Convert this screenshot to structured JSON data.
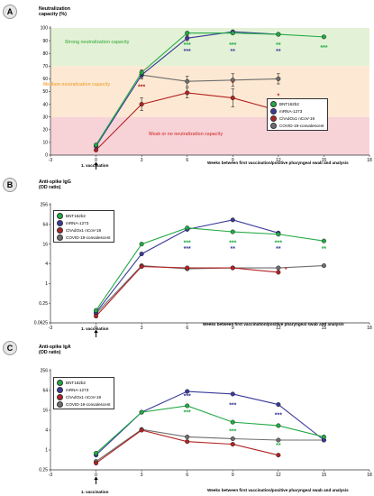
{
  "colors": {
    "BNT162b2": "#22aa44",
    "mRNA-1273": "#3a3a9a",
    "ChAdOx1 nCoV-19": "#b22222",
    "COVID-19-convalescent": "#6e6e6e",
    "strong_zone": "#e3f2d6",
    "medium_zone": "#fde9d3",
    "weak_zone": "#f7d3d8",
    "strong_text": "#5cb85c",
    "medium_text": "#f0ad4e",
    "weak_text": "#d9534f"
  },
  "panels": {
    "A": {
      "label": "A",
      "title": "Neutralization\ncapacity (%)",
      "xlabel": "Weeks between first vaccination/positive pharyngeal swab and analysis",
      "vaccination_label": "1. vaccination",
      "zones": {
        "strong": "Strong neutralization capacity",
        "medium": "Medium neutralization capacity",
        "weak": "Weak or no neutralization capacity"
      }
    },
    "B": {
      "label": "B",
      "title": "Anti-spike IgG\n(OD ratio)",
      "xlabel": "Weeks between first vaccination/positive pharyngeal swab and  analysis",
      "vaccination_label": "1. vaccination"
    },
    "C": {
      "label": "C",
      "title": "Anti-spike IgA\n(OD ratio)",
      "xlabel": "Weeks between first vaccination/positive pharyngeal swab and analysis",
      "vaccination_label": "1. vaccination"
    }
  },
  "legend": [
    "BNT162b2",
    "mRNA-1273",
    "ChAdOx1 nCoV-19",
    "COVID-19-convalescent"
  ],
  "chart_data": [
    {
      "type": "line",
      "panel": "A",
      "title": "Neutralization capacity (%)",
      "xlabel": "Weeks between first vaccination/positive pharyngeal swab and analysis",
      "ylabel": "Neutralization capacity (%)",
      "xlim": [
        -3,
        18
      ],
      "xticks": [
        -3,
        0,
        3,
        6,
        9,
        12,
        15,
        18
      ],
      "ylim": [
        0,
        100
      ],
      "yticks": [
        0,
        10,
        20,
        30,
        40,
        50,
        60,
        70,
        80,
        90,
        100
      ],
      "yscale": "linear",
      "bands": [
        {
          "from": 70,
          "to": 100,
          "zone": "strong"
        },
        {
          "from": 30,
          "to": 70,
          "zone": "medium"
        },
        {
          "from": 0,
          "to": 30,
          "zone": "weak"
        }
      ],
      "series": [
        {
          "name": "BNT162b2",
          "x": [
            0,
            3,
            6,
            9,
            12,
            15
          ],
          "y": [
            8,
            65,
            96,
            96,
            95,
            93
          ],
          "err": [
            1,
            2,
            1,
            1,
            1,
            1
          ]
        },
        {
          "name": "mRNA-1273",
          "x": [
            0,
            3,
            6,
            9,
            12
          ],
          "y": [
            7,
            63,
            92,
            97,
            95
          ],
          "err": [
            1,
            2,
            2,
            1,
            1
          ]
        },
        {
          "name": "ChAdOx1 nCoV-19",
          "x": [
            0,
            3,
            6,
            9,
            12
          ],
          "y": [
            4,
            40,
            49,
            45,
            35
          ],
          "err": [
            1,
            5,
            4,
            7,
            6
          ]
        },
        {
          "name": "COVID-19-convalescent",
          "x": [
            3,
            6,
            9,
            12
          ],
          "y": [
            63,
            58,
            59,
            60
          ],
          "err": [
            3,
            4,
            5,
            4
          ]
        }
      ],
      "annotations": [
        {
          "x": 6,
          "y": 85,
          "text": "***",
          "series": "BNT162b2"
        },
        {
          "x": 6,
          "y": 80,
          "text": "***",
          "series": "mRNA-1273"
        },
        {
          "x": 9,
          "y": 85,
          "text": "***",
          "series": "BNT162b2"
        },
        {
          "x": 9,
          "y": 80,
          "text": "**",
          "series": "mRNA-1273"
        },
        {
          "x": 12,
          "y": 85,
          "text": "**",
          "series": "BNT162b2"
        },
        {
          "x": 12,
          "y": 80,
          "text": "**",
          "series": "mRNA-1273"
        },
        {
          "x": 15,
          "y": 83,
          "text": "***",
          "series": "BNT162b2"
        },
        {
          "x": 3,
          "y": 52,
          "text": "***",
          "series": "ChAdOx1 nCoV-19"
        },
        {
          "x": 9,
          "y": 55,
          "text": "*",
          "series": "ChAdOx1 nCoV-19"
        },
        {
          "x": 12,
          "y": 45,
          "text": "*",
          "series": "ChAdOx1 nCoV-19"
        }
      ]
    },
    {
      "type": "line",
      "panel": "B",
      "title": "Anti-spike IgG (OD ratio)",
      "xlabel": "Weeks between first vaccination/positive pharyngeal swab and  analysis",
      "ylabel": "Anti-spike IgG (OD ratio)",
      "xlim": [
        -3,
        18
      ],
      "xticks": [
        -3,
        0,
        3,
        6,
        9,
        12,
        15,
        18
      ],
      "ylim": [
        0.0625,
        256
      ],
      "yticks": [
        0.0625,
        0.25,
        1,
        4,
        16,
        64,
        256
      ],
      "ytick_labels": [
        "0.0625",
        "0.25",
        "1",
        "4",
        "16",
        "64",
        "256"
      ],
      "yscale": "log2",
      "series": [
        {
          "name": "BNT162b2",
          "x": [
            0,
            3,
            6,
            9,
            12,
            15
          ],
          "y": [
            0.15,
            16,
            50,
            38,
            32,
            20
          ]
        },
        {
          "name": "mRNA-1273",
          "x": [
            0,
            3,
            6,
            9,
            12
          ],
          "y": [
            0.13,
            8,
            45,
            88,
            35
          ]
        },
        {
          "name": "ChAdOx1 nCoV-19",
          "x": [
            0,
            3,
            6,
            9,
            12
          ],
          "y": [
            0.1,
            3.3,
            3,
            3,
            2.2
          ]
        },
        {
          "name": "COVID-19-convalescent",
          "x": [
            0,
            3,
            6,
            9,
            12,
            15
          ],
          "y": [
            0.12,
            3.5,
            2.8,
            3,
            3,
            3.5
          ]
        }
      ],
      "annotations": [
        {
          "x": 6,
          "y": 15,
          "text": "***",
          "series": "BNT162b2"
        },
        {
          "x": 6,
          "y": 10,
          "text": "***",
          "series": "mRNA-1273"
        },
        {
          "x": 9,
          "y": 15,
          "text": "***",
          "series": "BNT162b2"
        },
        {
          "x": 9,
          "y": 10,
          "text": "**",
          "series": "mRNA-1273"
        },
        {
          "x": 12,
          "y": 15,
          "text": "***",
          "series": "BNT162b2"
        },
        {
          "x": 12,
          "y": 10,
          "text": "**",
          "series": "mRNA-1273"
        },
        {
          "x": 15,
          "y": 10,
          "text": "**",
          "series": "BNT162b2"
        },
        {
          "x": 12.5,
          "y": 2.3,
          "text": "*",
          "series": "ChAdOx1 nCoV-19"
        }
      ]
    },
    {
      "type": "line",
      "panel": "C",
      "title": "Anti-spike IgA (OD ratio)",
      "xlabel": "Weeks between first vaccination/positive pharyngeal swab and analysis",
      "ylabel": "Anti-spike IgA (OD ratio)",
      "xlim": [
        -3,
        18
      ],
      "xticks": [
        -3,
        0,
        3,
        6,
        9,
        12,
        15,
        18
      ],
      "ylim": [
        0.25,
        256
      ],
      "yticks": [
        0.25,
        1,
        4,
        16,
        64,
        256
      ],
      "ytick_labels": [
        "0.25",
        "1",
        "4",
        "16",
        "64",
        "256"
      ],
      "yscale": "log2",
      "series": [
        {
          "name": "BNT162b2",
          "x": [
            0,
            3,
            6,
            9,
            12,
            15
          ],
          "y": [
            0.8,
            14,
            22,
            7,
            5.5,
            2.5
          ]
        },
        {
          "name": "mRNA-1273",
          "x": [
            0,
            3,
            6,
            9,
            12,
            15
          ],
          "y": [
            0.7,
            14,
            60,
            50,
            24,
            2
          ]
        },
        {
          "name": "ChAdOx1 nCoV-19",
          "x": [
            0,
            3,
            6,
            9,
            12
          ],
          "y": [
            0.4,
            4,
            1.8,
            1.5,
            0.7
          ]
        },
        {
          "name": "COVID-19-convalescent",
          "x": [
            0,
            3,
            6,
            9,
            12,
            15
          ],
          "y": [
            0.45,
            4.2,
            2.5,
            2.2,
            2,
            2
          ]
        }
      ],
      "annotations": [
        {
          "x": 6,
          "y": 38,
          "text": "***",
          "series": "mRNA-1273"
        },
        {
          "x": 6,
          "y": 12,
          "text": "***",
          "series": "BNT162b2"
        },
        {
          "x": 9,
          "y": 20,
          "text": "***",
          "series": "mRNA-1273"
        },
        {
          "x": 9,
          "y": 3.2,
          "text": "***",
          "series": "BNT162b2"
        },
        {
          "x": 12,
          "y": 10,
          "text": "***",
          "series": "mRNA-1273"
        },
        {
          "x": 12,
          "y": 1.2,
          "text": "**",
          "series": "BNT162b2"
        }
      ]
    }
  ]
}
